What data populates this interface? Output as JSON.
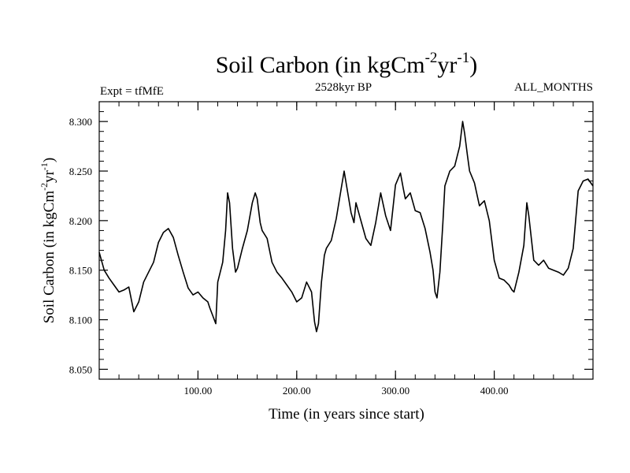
{
  "chart_data": {
    "type": "line",
    "title": {
      "main": "Soil Carbon (in kgCm",
      "sup1": "-2",
      "mid": "yr",
      "sup2": "-1",
      "end": ")"
    },
    "subtitle_left": "Expt = tfMfE",
    "subtitle_center": "2528kyr BP",
    "subtitle_right": "ALL_MONTHS",
    "xlabel": "Time (in years since start)",
    "ylabel": {
      "main": "Soil Carbon (in kgCm",
      "sup1": "-2",
      "mid": "yr",
      "sup2": "-1",
      "end": ")"
    },
    "xlim": [
      0,
      500
    ],
    "ylim": [
      8.04,
      8.32
    ],
    "x_ticks": [
      100,
      200,
      300,
      400
    ],
    "x_tick_labels": [
      "100.00",
      "200.00",
      "300.00",
      "400.00"
    ],
    "y_ticks": [
      8.05,
      8.1,
      8.15,
      8.2,
      8.25,
      8.3
    ],
    "y_tick_labels": [
      "8.050",
      "8.100",
      "8.150",
      "8.200",
      "8.250",
      "8.300"
    ],
    "grid": false,
    "series": [
      {
        "name": "Soil Carbon",
        "color": "#000000",
        "x": [
          0,
          5,
          10,
          15,
          20,
          25,
          30,
          35,
          40,
          45,
          50,
          55,
          60,
          65,
          70,
          75,
          80,
          85,
          90,
          95,
          100,
          105,
          110,
          112,
          115,
          118,
          120,
          125,
          128,
          130,
          132,
          135,
          138,
          140,
          145,
          150,
          155,
          158,
          160,
          163,
          165,
          170,
          175,
          180,
          185,
          190,
          195,
          200,
          205,
          210,
          215,
          218,
          220,
          222,
          225,
          228,
          230,
          235,
          240,
          245,
          248,
          250,
          255,
          258,
          260,
          265,
          270,
          275,
          280,
          285,
          290,
          295,
          300,
          305,
          308,
          310,
          315,
          320,
          325,
          330,
          335,
          338,
          340,
          342,
          345,
          348,
          350,
          355,
          360,
          365,
          368,
          370,
          373,
          375,
          380,
          385,
          390,
          395,
          400,
          405,
          410,
          412,
          415,
          418,
          420,
          425,
          430,
          433,
          435,
          440,
          445,
          450,
          455,
          460,
          465,
          470,
          475,
          480,
          485,
          490,
          495,
          500
        ],
        "values": [
          8.168,
          8.15,
          8.142,
          8.135,
          8.128,
          8.13,
          8.133,
          8.108,
          8.118,
          8.138,
          8.148,
          8.158,
          8.178,
          8.188,
          8.192,
          8.183,
          8.165,
          8.148,
          8.132,
          8.125,
          8.128,
          8.122,
          8.118,
          8.112,
          8.104,
          8.096,
          8.138,
          8.158,
          8.19,
          8.228,
          8.218,
          8.172,
          8.148,
          8.152,
          8.172,
          8.19,
          8.218,
          8.228,
          8.222,
          8.198,
          8.19,
          8.182,
          8.158,
          8.148,
          8.142,
          8.135,
          8.128,
          8.118,
          8.122,
          8.138,
          8.128,
          8.098,
          8.088,
          8.096,
          8.138,
          8.165,
          8.172,
          8.18,
          8.202,
          8.232,
          8.25,
          8.238,
          8.208,
          8.198,
          8.218,
          8.2,
          8.182,
          8.175,
          8.198,
          8.228,
          8.205,
          8.19,
          8.236,
          8.248,
          8.232,
          8.222,
          8.228,
          8.21,
          8.208,
          8.192,
          8.168,
          8.15,
          8.128,
          8.122,
          8.148,
          8.198,
          8.235,
          8.25,
          8.255,
          8.275,
          8.3,
          8.288,
          8.265,
          8.25,
          8.238,
          8.215,
          8.22,
          8.2,
          8.16,
          8.142,
          8.14,
          8.138,
          8.135,
          8.13,
          8.128,
          8.148,
          8.175,
          8.218,
          8.205,
          8.16,
          8.155,
          8.16,
          8.152,
          8.15,
          8.148,
          8.145,
          8.152,
          8.172,
          8.23,
          8.24,
          8.242,
          8.235
        ]
      }
    ]
  }
}
